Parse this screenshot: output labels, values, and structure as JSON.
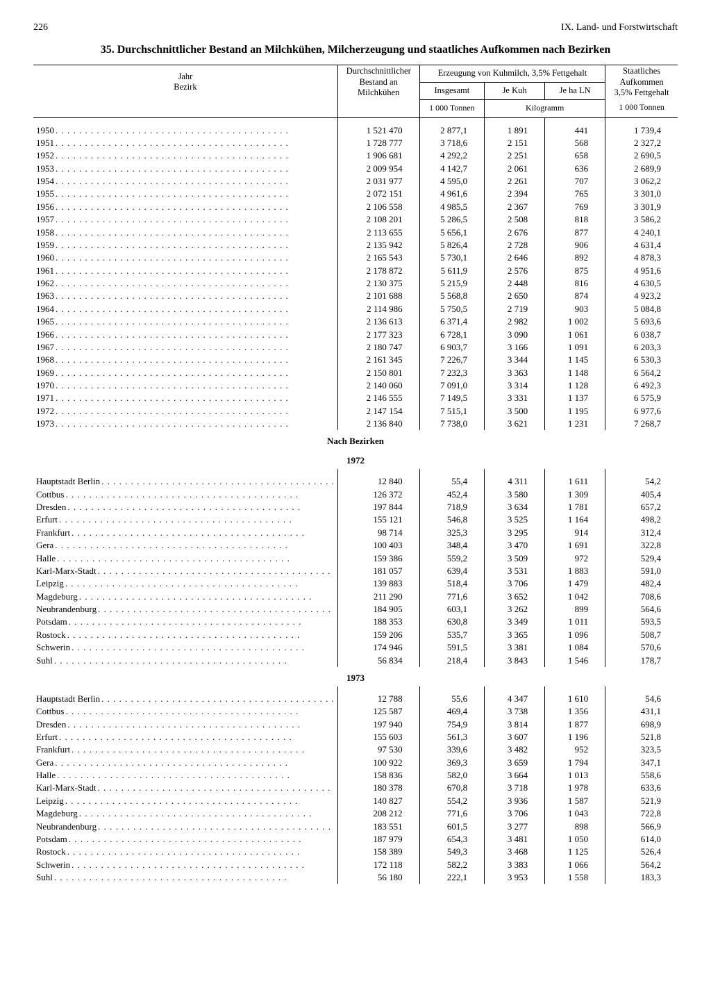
{
  "page_number": "226",
  "section_header": "IX. Land- und Forstwirtschaft",
  "title": "35. Durchschnittlicher Bestand an Milchkühen, Milcherzeugung und staatliches Aufkommen nach Bezirken",
  "headers": {
    "year_district": "Jahr\nBezirk",
    "avg_cows": "Durchschnittlicher\nBestand an\nMilchkühen",
    "production_span": "Erzeugung von Kuhmilch, 3,5% Fettgehalt",
    "total": "Insgesamt",
    "per_cow": "Je Kuh",
    "per_ha": "Je ha LN",
    "state": "Staatliches\nAufkommen\n3,5% Fettgehalt",
    "unit_1000t": "1 000 Tonnen",
    "unit_kg": "Kilogramm",
    "section_districts": "Nach Bezirken",
    "y1972": "1972",
    "y1973": "1973"
  },
  "years": [
    {
      "label": "1950",
      "cows": "1 521 470",
      "total": "2 877,1",
      "per_cow": "1 891",
      "per_ha": "441",
      "state": "1 739,4"
    },
    {
      "label": "1951",
      "cows": "1 728 777",
      "total": "3 718,6",
      "per_cow": "2 151",
      "per_ha": "568",
      "state": "2 327,2"
    },
    {
      "label": "1952",
      "cows": "1 906 681",
      "total": "4 292,2",
      "per_cow": "2 251",
      "per_ha": "658",
      "state": "2 690,5"
    },
    {
      "label": "1953",
      "cows": "2 009 954",
      "total": "4 142,7",
      "per_cow": "2 061",
      "per_ha": "636",
      "state": "2 689,9"
    },
    {
      "label": "1954",
      "cows": "2 031 977",
      "total": "4 595,0",
      "per_cow": "2 261",
      "per_ha": "707",
      "state": "3 062,2"
    },
    {
      "label": "1955",
      "cows": "2 072 151",
      "total": "4 961,6",
      "per_cow": "2 394",
      "per_ha": "765",
      "state": "3 301,0"
    },
    {
      "label": "1956",
      "cows": "2 106 558",
      "total": "4 985,5",
      "per_cow": "2 367",
      "per_ha": "769",
      "state": "3 301,9"
    },
    {
      "label": "1957",
      "cows": "2 108 201",
      "total": "5 286,5",
      "per_cow": "2 508",
      "per_ha": "818",
      "state": "3 586,2"
    },
    {
      "label": "1958",
      "cows": "2 113 655",
      "total": "5 656,1",
      "per_cow": "2 676",
      "per_ha": "877",
      "state": "4 240,1"
    },
    {
      "label": "1959",
      "cows": "2 135 942",
      "total": "5 826,4",
      "per_cow": "2 728",
      "per_ha": "906",
      "state": "4 631,4"
    },
    {
      "label": "1960",
      "cows": "2 165 543",
      "total": "5 730,1",
      "per_cow": "2 646",
      "per_ha": "892",
      "state": "4 878,3"
    },
    {
      "label": "1961",
      "cows": "2 178 872",
      "total": "5 611,9",
      "per_cow": "2 576",
      "per_ha": "875",
      "state": "4 951,6"
    },
    {
      "label": "1962",
      "cows": "2 130 375",
      "total": "5 215,9",
      "per_cow": "2 448",
      "per_ha": "816",
      "state": "4 630,5"
    },
    {
      "label": "1963",
      "cows": "2 101 688",
      "total": "5 568,8",
      "per_cow": "2 650",
      "per_ha": "874",
      "state": "4 923,2"
    },
    {
      "label": "1964",
      "cows": "2 114 986",
      "total": "5 750,5",
      "per_cow": "2 719",
      "per_ha": "903",
      "state": "5 084,8"
    },
    {
      "label": "1965",
      "cows": "2 136 613",
      "total": "6 371,4",
      "per_cow": "2 982",
      "per_ha": "1 002",
      "state": "5 693,6"
    },
    {
      "label": "1966",
      "cows": "2 177 323",
      "total": "6 728,1",
      "per_cow": "3 090",
      "per_ha": "1 061",
      "state": "6 038,7"
    },
    {
      "label": "1967",
      "cows": "2 180 747",
      "total": "6 903,7",
      "per_cow": "3 166",
      "per_ha": "1 091",
      "state": "6 203,3"
    },
    {
      "label": "1968",
      "cows": "2 161 345",
      "total": "7 226,7",
      "per_cow": "3 344",
      "per_ha": "1 145",
      "state": "6 530,3"
    },
    {
      "label": "1969",
      "cows": "2 150 801",
      "total": "7 232,3",
      "per_cow": "3 363",
      "per_ha": "1 148",
      "state": "6 564,2"
    },
    {
      "label": "1970",
      "cows": "2 140 060",
      "total": "7 091,0",
      "per_cow": "3 314",
      "per_ha": "1 128",
      "state": "6 492,3"
    },
    {
      "label": "1971",
      "cows": "2 146 555",
      "total": "7 149,5",
      "per_cow": "3 331",
      "per_ha": "1 137",
      "state": "6 575,9"
    },
    {
      "label": "1972",
      "cows": "2 147 154",
      "total": "7 515,1",
      "per_cow": "3 500",
      "per_ha": "1 195",
      "state": "6 977,6"
    },
    {
      "label": "1973",
      "cows": "2 136 840",
      "total": "7 738,0",
      "per_cow": "3 621",
      "per_ha": "1 231",
      "state": "7 268,7"
    }
  ],
  "districts_1972": [
    {
      "label": "Hauptstadt Berlin",
      "cows": "12 840",
      "total": "55,4",
      "per_cow": "4 311",
      "per_ha": "1 611",
      "state": "54,2"
    },
    {
      "label": "Cottbus",
      "cows": "126 372",
      "total": "452,4",
      "per_cow": "3 580",
      "per_ha": "1 309",
      "state": "405,4"
    },
    {
      "label": "Dresden",
      "cows": "197 844",
      "total": "718,9",
      "per_cow": "3 634",
      "per_ha": "1 781",
      "state": "657,2"
    },
    {
      "label": "Erfurt",
      "cows": "155 121",
      "total": "546,8",
      "per_cow": "3 525",
      "per_ha": "1 164",
      "state": "498,2"
    },
    {
      "label": "Frankfurt",
      "cows": "98 714",
      "total": "325,3",
      "per_cow": "3 295",
      "per_ha": "914",
      "state": "312,4"
    },
    {
      "label": "Gera",
      "cows": "100 403",
      "total": "348,4",
      "per_cow": "3 470",
      "per_ha": "1 691",
      "state": "322,8"
    },
    {
      "label": "Halle",
      "cows": "159 386",
      "total": "559,2",
      "per_cow": "3 509",
      "per_ha": "972",
      "state": "529,4"
    },
    {
      "label": "Karl-Marx-Stadt",
      "cows": "181 057",
      "total": "639,4",
      "per_cow": "3 531",
      "per_ha": "1 883",
      "state": "591,0"
    },
    {
      "label": "Leipzig",
      "cows": "139 883",
      "total": "518,4",
      "per_cow": "3 706",
      "per_ha": "1 479",
      "state": "482,4"
    },
    {
      "label": "Magdeburg",
      "cows": "211 290",
      "total": "771,6",
      "per_cow": "3 652",
      "per_ha": "1 042",
      "state": "708,6"
    },
    {
      "label": "Neubrandenburg",
      "cows": "184 905",
      "total": "603,1",
      "per_cow": "3 262",
      "per_ha": "899",
      "state": "564,6"
    },
    {
      "label": "Potsdam",
      "cows": "188 353",
      "total": "630,8",
      "per_cow": "3 349",
      "per_ha": "1 011",
      "state": "593,5"
    },
    {
      "label": "Rostock",
      "cows": "159 206",
      "total": "535,7",
      "per_cow": "3 365",
      "per_ha": "1 096",
      "state": "508,7"
    },
    {
      "label": "Schwerin",
      "cows": "174 946",
      "total": "591,5",
      "per_cow": "3 381",
      "per_ha": "1 084",
      "state": "570,6"
    },
    {
      "label": "Suhl",
      "cows": "56 834",
      "total": "218,4",
      "per_cow": "3 843",
      "per_ha": "1 546",
      "state": "178,7"
    }
  ],
  "districts_1973": [
    {
      "label": "Hauptstadt Berlin",
      "cows": "12 788",
      "total": "55,6",
      "per_cow": "4 347",
      "per_ha": "1 610",
      "state": "54,6"
    },
    {
      "label": "Cottbus",
      "cows": "125 587",
      "total": "469,4",
      "per_cow": "3 738",
      "per_ha": "1 356",
      "state": "431,1"
    },
    {
      "label": "Dresden",
      "cows": "197 940",
      "total": "754,9",
      "per_cow": "3 814",
      "per_ha": "1 877",
      "state": "698,9"
    },
    {
      "label": "Erfurt",
      "cows": "155 603",
      "total": "561,3",
      "per_cow": "3 607",
      "per_ha": "1 196",
      "state": "521,8"
    },
    {
      "label": "Frankfurt",
      "cows": "97 530",
      "total": "339,6",
      "per_cow": "3 482",
      "per_ha": "952",
      "state": "323,5"
    },
    {
      "label": "Gera",
      "cows": "100 922",
      "total": "369,3",
      "per_cow": "3 659",
      "per_ha": "1 794",
      "state": "347,1"
    },
    {
      "label": "Halle",
      "cows": "158 836",
      "total": "582,0",
      "per_cow": "3 664",
      "per_ha": "1 013",
      "state": "558,6"
    },
    {
      "label": "Karl-Marx-Stadt",
      "cows": "180 378",
      "total": "670,8",
      "per_cow": "3 718",
      "per_ha": "1 978",
      "state": "633,6"
    },
    {
      "label": "Leipzig",
      "cows": "140 827",
      "total": "554,2",
      "per_cow": "3 936",
      "per_ha": "1 587",
      "state": "521,9"
    },
    {
      "label": "Magdeburg",
      "cows": "208 212",
      "total": "771,6",
      "per_cow": "3 706",
      "per_ha": "1 043",
      "state": "722,8"
    },
    {
      "label": "Neubrandenburg",
      "cows": "183 551",
      "total": "601,5",
      "per_cow": "3 277",
      "per_ha": "898",
      "state": "566,9"
    },
    {
      "label": "Potsdam",
      "cows": "187 979",
      "total": "654,3",
      "per_cow": "3 481",
      "per_ha": "1 050",
      "state": "614,0"
    },
    {
      "label": "Rostock",
      "cows": "158 389",
      "total": "549,3",
      "per_cow": "3 468",
      "per_ha": "1 125",
      "state": "526,4"
    },
    {
      "label": "Schwerin",
      "cows": "172 118",
      "total": "582,2",
      "per_cow": "3 383",
      "per_ha": "1 066",
      "state": "564,2"
    },
    {
      "label": "Suhl",
      "cows": "56 180",
      "total": "222,1",
      "per_cow": "3 953",
      "per_ha": "1 558",
      "state": "183,3"
    }
  ]
}
